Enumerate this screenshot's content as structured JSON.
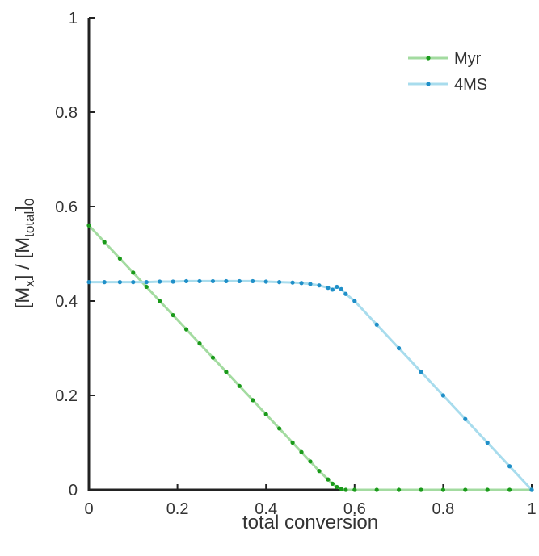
{
  "chart_data": {
    "type": "line",
    "xlabel": "total conversion",
    "ylabel_parts": [
      {
        "text": "[M"
      },
      {
        "text": "x",
        "sub": true
      },
      {
        "text": "] / [M"
      },
      {
        "text": "total",
        "sub": true
      },
      {
        "text": "]"
      },
      {
        "text": "0",
        "sub": true
      }
    ],
    "x": [
      0,
      0.035,
      0.07,
      0.1,
      0.13,
      0.16,
      0.19,
      0.22,
      0.25,
      0.28,
      0.31,
      0.34,
      0.37,
      0.4,
      0.43,
      0.46,
      0.48,
      0.5,
      0.52,
      0.54,
      0.55,
      0.56,
      0.57,
      0.58,
      0.6,
      0.65,
      0.7,
      0.75,
      0.8,
      0.85,
      0.9,
      0.95,
      1.0
    ],
    "series": [
      {
        "name": "Myr",
        "color": "#1a9a1a",
        "line_color": "#a3dba0",
        "values": [
          0.56,
          0.525,
          0.49,
          0.46,
          0.43,
          0.4,
          0.37,
          0.34,
          0.31,
          0.28,
          0.25,
          0.22,
          0.19,
          0.16,
          0.13,
          0.1,
          0.08,
          0.06,
          0.04,
          0.022,
          0.013,
          0.006,
          0.002,
          0,
          0,
          0,
          0,
          0,
          0,
          0,
          0,
          0,
          0
        ]
      },
      {
        "name": "4MS",
        "color": "#1f8fc8",
        "line_color": "#a8dced",
        "values": [
          0.44,
          0.44,
          0.44,
          0.44,
          0.44,
          0.441,
          0.441,
          0.442,
          0.442,
          0.442,
          0.442,
          0.442,
          0.442,
          0.441,
          0.44,
          0.439,
          0.438,
          0.436,
          0.433,
          0.428,
          0.424,
          0.43,
          0.425,
          0.415,
          0.4,
          0.35,
          0.3,
          0.25,
          0.2,
          0.15,
          0.1,
          0.05,
          0
        ]
      }
    ],
    "xlim": [
      0,
      1
    ],
    "xticks": [
      0,
      0.2,
      0.4,
      0.6,
      0.8,
      1
    ],
    "ylim": [
      0,
      1
    ],
    "yticks": [
      0,
      0.2,
      0.4,
      0.6,
      0.8,
      1
    ],
    "legend": "top-right"
  }
}
